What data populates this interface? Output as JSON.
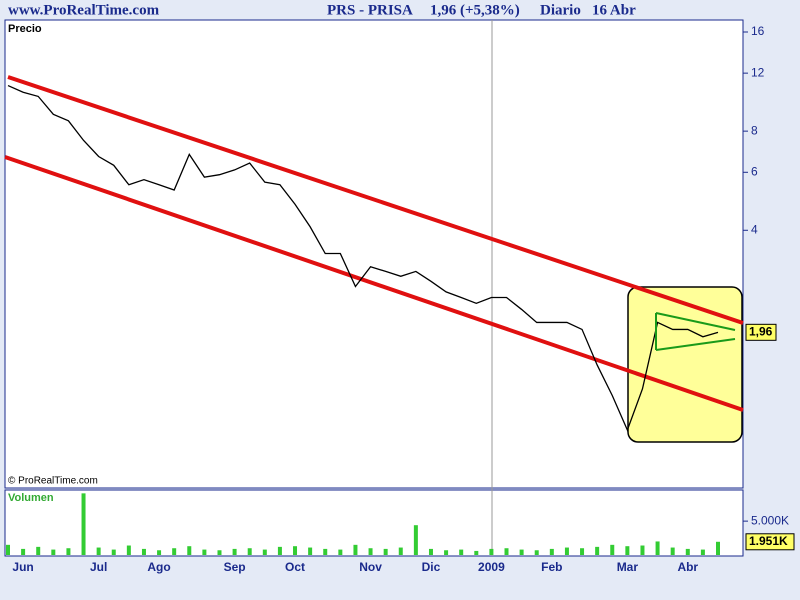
{
  "header": {
    "site": "www.ProRealTime.com",
    "title": "PRS - PRISA",
    "quote": "1,96 (+5,38%)",
    "period": "Diario",
    "date": "16 Abr",
    "copyright": "© ProRealTime.com"
  },
  "chart_data": [
    {
      "type": "line",
      "title": "Precio",
      "color": "#000000",
      "log_scale": true,
      "values": [
        11.0,
        10.5,
        10.2,
        9.0,
        8.6,
        7.5,
        6.7,
        6.3,
        5.5,
        5.7,
        5.5,
        5.3,
        6.8,
        5.8,
        5.9,
        6.1,
        6.4,
        5.6,
        5.5,
        4.8,
        4.1,
        3.4,
        3.4,
        2.7,
        3.1,
        3.0,
        2.9,
        3.0,
        2.8,
        2.6,
        2.5,
        2.4,
        2.5,
        2.5,
        2.3,
        2.1,
        2.1,
        2.1,
        2.0,
        1.56,
        1.26,
        0.99,
        1.32,
        2.1,
        2.0,
        2.0,
        1.9,
        1.96
      ],
      "ylim": [
        0.66,
        17.4
      ],
      "yticks": [
        4,
        6,
        8,
        12,
        16
      ],
      "last_value": {
        "value": 1.96,
        "label": "1,96"
      }
    },
    {
      "type": "bar",
      "title": "Volumen",
      "color": "#33cc33",
      "categories": [
        null,
        "Jun",
        null,
        null,
        null,
        null,
        "Jul",
        null,
        null,
        null,
        "Ago",
        null,
        null,
        null,
        null,
        "Sep",
        null,
        null,
        null,
        "Oct",
        null,
        null,
        null,
        null,
        "Nov",
        null,
        null,
        null,
        "Dic",
        null,
        null,
        null,
        "2009",
        null,
        null,
        null,
        "Feb",
        null,
        null,
        null,
        null,
        "Mar",
        null,
        null,
        null,
        "Abr",
        null,
        null
      ],
      "values": [
        1500,
        900,
        1200,
        800,
        1000,
        9100,
        1100,
        800,
        1400,
        900,
        700,
        1000,
        1300,
        800,
        700,
        900,
        1000,
        800,
        1200,
        1300,
        1100,
        900,
        800,
        1500,
        1000,
        900,
        1100,
        4400,
        900,
        700,
        800,
        600,
        900,
        1000,
        800,
        700,
        900,
        1100,
        1000,
        1200,
        1500,
        1300,
        1400,
        2000,
        1100,
        900,
        800,
        1951
      ],
      "ylim": [
        0,
        9300
      ],
      "yticks": [
        {
          "value": 5000,
          "label": "5.000K"
        }
      ],
      "last_value": {
        "value": 1951,
        "label": "1.951K"
      }
    }
  ]
}
